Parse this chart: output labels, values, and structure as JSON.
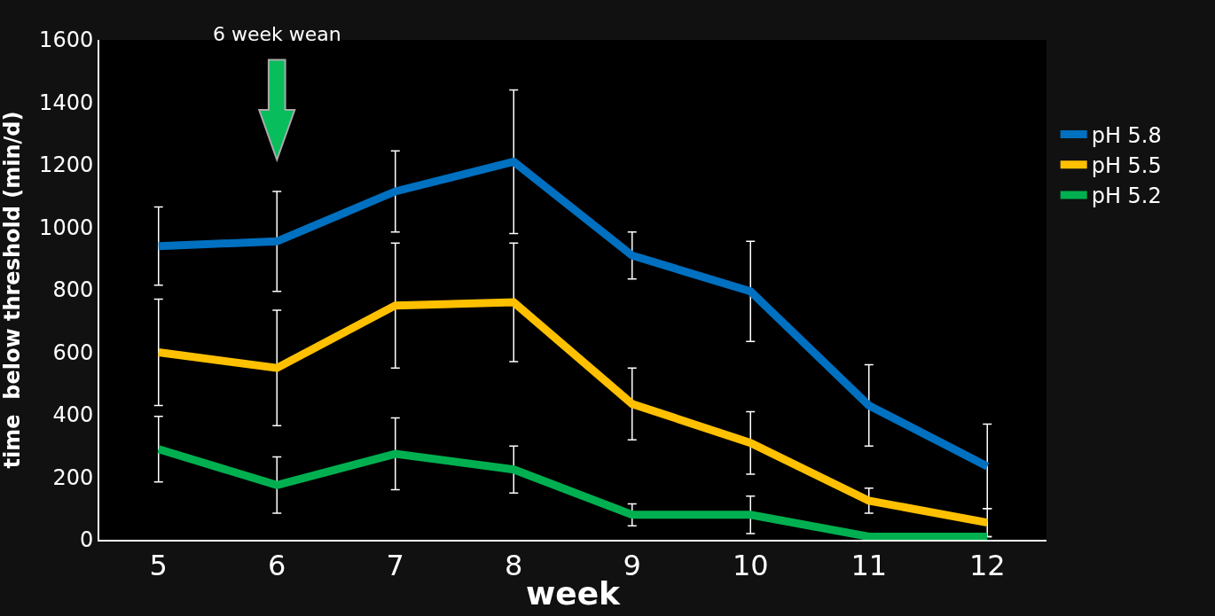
{
  "chart_data": {
    "type": "line",
    "xlabel": "week",
    "ylabel": "time  below threshold (min/d)",
    "categories": [
      "5",
      "6",
      "7",
      "8",
      "9",
      "10",
      "11",
      "12"
    ],
    "series": [
      {
        "name": "pH 5.8",
        "color": "#0070c0",
        "values": [
          940,
          955,
          1115,
          1210,
          910,
          795,
          430,
          235
        ],
        "errors": [
          125,
          160,
          130,
          230,
          75,
          160,
          130,
          135
        ]
      },
      {
        "name": "pH 5.5",
        "color": "#ffc000",
        "values": [
          600,
          550,
          750,
          760,
          435,
          310,
          125,
          55
        ],
        "errors": [
          170,
          185,
          200,
          190,
          115,
          100,
          40,
          45
        ]
      },
      {
        "name": "pH 5.2",
        "color": "#00b050",
        "values": [
          290,
          175,
          275,
          225,
          80,
          80,
          10,
          10
        ],
        "errors": [
          105,
          90,
          115,
          75,
          35,
          60,
          null,
          null
        ]
      }
    ],
    "ylim": [
      0,
      1600
    ],
    "yticks": [
      0,
      200,
      400,
      600,
      800,
      1000,
      1200,
      1400,
      1600
    ],
    "grid": false,
    "legend": "right",
    "marker": "none",
    "line_style": "solid",
    "annotations": [
      "6 week wean"
    ]
  }
}
